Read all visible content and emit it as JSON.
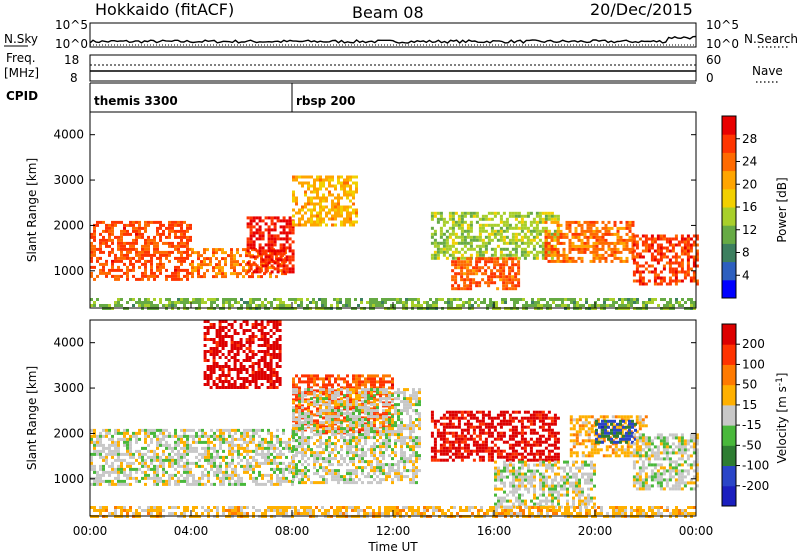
{
  "header": {
    "station": "Hokkaido (fitACF)",
    "beam": "Beam 08",
    "date": "20/Dec/2015"
  },
  "noise_panel": {
    "left_label": "N.Sky",
    "right_label": "N.Search",
    "left_ticks": [
      "10^5",
      "10^0"
    ],
    "right_ticks": [
      "10^5",
      "10^0"
    ]
  },
  "freq_panel": {
    "left_label_1": "Freq.",
    "left_label_2": "[MHz]",
    "left_ticks": [
      "18",
      "8"
    ],
    "right_label": "Nave",
    "right_ticks": [
      "60",
      "0"
    ]
  },
  "cpid": {
    "label": "CPID",
    "segments": [
      {
        "name": "themis 3300",
        "start_hour": 0
      },
      {
        "name": "rbsp 200",
        "start_hour": 8
      }
    ]
  },
  "chart_data": [
    {
      "type": "heatmap",
      "panel": "power",
      "ylabel": "Slant Range [km]",
      "yticks": [
        "4000",
        "3000",
        "2000",
        "1000"
      ],
      "ylim": [
        180,
        4500
      ],
      "xlim_hours": [
        0,
        24
      ],
      "colorbar_label": "Power [dB]",
      "colorbar_ticks": [
        "28",
        "24",
        "20",
        "16",
        "12",
        "8",
        "4"
      ],
      "colorbar_colors": [
        "#0000ff",
        "#2d5fbf",
        "#3c7f5f",
        "#66aa44",
        "#a8cf2a",
        "#f2d000",
        "#ffa500",
        "#ff6a00",
        "#ff3500",
        "#e80000"
      ],
      "clim": [
        0,
        32
      ],
      "structures": [
        {
          "t0": 0.0,
          "t1": 4.0,
          "r0": 800,
          "r1": 2100,
          "value": 26
        },
        {
          "t0": 4.0,
          "t1": 7.7,
          "r0": 900,
          "r1": 1500,
          "value": 24
        },
        {
          "t0": 6.2,
          "t1": 8.0,
          "r0": 950,
          "r1": 2200,
          "value": 29
        },
        {
          "t0": 8.0,
          "t1": 10.5,
          "r0": 2000,
          "r1": 3100,
          "value": 20
        },
        {
          "t0": 13.5,
          "t1": 18.5,
          "r0": 1300,
          "r1": 2300,
          "value": 14
        },
        {
          "t0": 14.3,
          "t1": 17.0,
          "r0": 600,
          "r1": 1300,
          "value": 25
        },
        {
          "t0": 18.0,
          "t1": 21.5,
          "r0": 1200,
          "r1": 2100,
          "value": 24
        },
        {
          "t0": 21.5,
          "t1": 24.0,
          "r0": 700,
          "r1": 1800,
          "value": 27
        },
        {
          "t0": 0.0,
          "t1": 24.0,
          "r0": 180,
          "r1": 400,
          "value": 12
        }
      ]
    },
    {
      "type": "heatmap",
      "panel": "velocity",
      "ylabel": "Slant Range [km]",
      "yticks": [
        "4000",
        "3000",
        "2000",
        "1000"
      ],
      "ylim": [
        180,
        4500
      ],
      "xlim_hours": [
        0,
        24
      ],
      "xlabel": "Time UT",
      "xticks": [
        "00:00",
        "04:00",
        "08:00",
        "12:00",
        "16:00",
        "20:00",
        "00:00"
      ],
      "colorbar_label": "Velocity [m s-1]",
      "colorbar_ticks": [
        "200",
        "100",
        "50",
        "15",
        "-15",
        "-50",
        "-100",
        "-200"
      ],
      "colorbar_colors": [
        "#1b1fbf",
        "#2a45c8",
        "#2e7d32",
        "#49b83b",
        "#c8c8c8",
        "#ffb000",
        "#ff7a00",
        "#ff3300",
        "#dd0000"
      ],
      "clim": [
        -250,
        250
      ],
      "structures": [
        {
          "t0": 0.0,
          "t1": 8.0,
          "r0": 900,
          "r1": 2100,
          "value": 0
        },
        {
          "t0": 4.5,
          "t1": 7.5,
          "r0": 3000,
          "r1": 4500,
          "value": 230
        },
        {
          "t0": 8.0,
          "t1": 12.0,
          "r0": 2000,
          "r1": 3300,
          "value": 150
        },
        {
          "t0": 8.0,
          "t1": 13.0,
          "r0": 900,
          "r1": 3000,
          "value": 0
        },
        {
          "t0": 13.5,
          "t1": 18.5,
          "r0": 1400,
          "r1": 2500,
          "value": 220
        },
        {
          "t0": 16.0,
          "t1": 20.0,
          "r0": 400,
          "r1": 1400,
          "value": 0
        },
        {
          "t0": 19.0,
          "t1": 22.0,
          "r0": 1500,
          "r1": 2400,
          "value": 60
        },
        {
          "t0": 20.0,
          "t1": 21.6,
          "r0": 1800,
          "r1": 2300,
          "value": -150
        },
        {
          "t0": 21.5,
          "t1": 24.0,
          "r0": 800,
          "r1": 2000,
          "value": 0
        },
        {
          "t0": 0.0,
          "t1": 24.0,
          "r0": 180,
          "r1": 400,
          "value": 50
        }
      ]
    }
  ]
}
